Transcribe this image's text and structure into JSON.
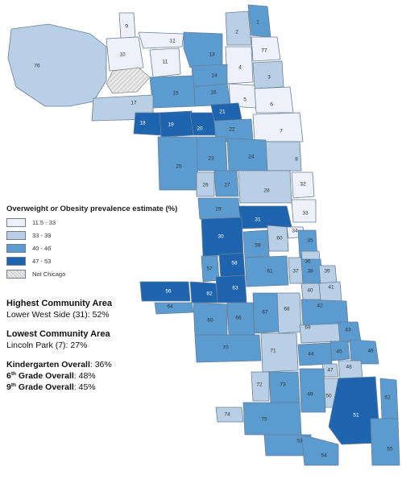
{
  "legend": {
    "title": "Overweight or Obesity prevalence estimate (%)",
    "items": [
      {
        "label": "11.5 - 33",
        "color": "#eef1fa"
      },
      {
        "label": "33 - 39",
        "color": "#b8cfe6"
      },
      {
        "label": "40 - 46",
        "color": "#5b9bcf"
      },
      {
        "label": "47 - 53",
        "color": "#1f64ae"
      },
      {
        "label": "Not Chicago",
        "color": "hatch"
      }
    ]
  },
  "stats": {
    "highest_heading": "Highest Community Area",
    "highest_value": "Lower West Side (31): 52%",
    "lowest_heading": "Lowest Community Area",
    "lowest_value": "Lincoln Park (7): 27%",
    "k_label": "Kindergarten Overall",
    "k_value": ": 36%",
    "g6_num": "6",
    "g6_sup": "th",
    "g6_label": " Grade Overall",
    "g6_value": ": 48%",
    "g9_num": "9",
    "g9_sup": "th",
    "g9_label": " Grade Overall",
    "g9_value": ": 45%"
  },
  "map": {
    "areas": [
      {
        "id": "76",
        "class": 2
      },
      {
        "id": "9",
        "class": 1
      },
      {
        "id": "10",
        "class": 1
      },
      {
        "id": "12",
        "class": 1
      },
      {
        "id": "11",
        "class": 1
      },
      {
        "id": "13",
        "class": 3
      },
      {
        "id": "2",
        "class": 2
      },
      {
        "id": "1",
        "class": 3
      },
      {
        "id": "77",
        "class": 1
      },
      {
        "id": "4",
        "class": 1
      },
      {
        "id": "3",
        "class": 2
      },
      {
        "id": "14",
        "class": 3
      },
      {
        "id": "16",
        "class": 3
      },
      {
        "id": "15",
        "class": 3
      },
      {
        "id": "17",
        "class": 2
      },
      {
        "id": "5",
        "class": 1
      },
      {
        "id": "6",
        "class": 1
      },
      {
        "id": "18",
        "class": 4
      },
      {
        "id": "19",
        "class": 4
      },
      {
        "id": "20",
        "class": 4
      },
      {
        "id": "21",
        "class": 4
      },
      {
        "id": "22",
        "class": 3
      },
      {
        "id": "7",
        "class": 1
      },
      {
        "id": "8",
        "class": 2
      },
      {
        "id": "23",
        "class": 3
      },
      {
        "id": "24",
        "class": 3
      },
      {
        "id": "25",
        "class": 3
      },
      {
        "id": "26",
        "class": 2
      },
      {
        "id": "27",
        "class": 3
      },
      {
        "id": "28",
        "class": 2
      },
      {
        "id": "32",
        "class": 1
      },
      {
        "id": "29",
        "class": 3
      },
      {
        "id": "33",
        "class": 1
      },
      {
        "id": "31",
        "class": 4
      },
      {
        "id": "30",
        "class": 4
      },
      {
        "id": "34",
        "class": 1
      },
      {
        "id": "35",
        "class": 3
      },
      {
        "id": "60",
        "class": 2
      },
      {
        "id": "59",
        "class": 3
      },
      {
        "id": "36",
        "class": 2
      },
      {
        "id": "57",
        "class": 3
      },
      {
        "id": "58",
        "class": 4
      },
      {
        "id": "61",
        "class": 3
      },
      {
        "id": "37",
        "class": 2
      },
      {
        "id": "38",
        "class": 3
      },
      {
        "id": "39",
        "class": 2
      },
      {
        "id": "40",
        "class": 2
      },
      {
        "id": "41",
        "class": 2
      },
      {
        "id": "56",
        "class": 4
      },
      {
        "id": "62",
        "class": 4
      },
      {
        "id": "63",
        "class": 4
      },
      {
        "id": "42",
        "class": 3
      },
      {
        "id": "64",
        "class": 3
      },
      {
        "id": "65",
        "class": 3
      },
      {
        "id": "66",
        "class": 3
      },
      {
        "id": "67",
        "class": 3
      },
      {
        "id": "68",
        "class": 2
      },
      {
        "id": "69",
        "class": 2
      },
      {
        "id": "43",
        "class": 3
      },
      {
        "id": "70",
        "class": 3
      },
      {
        "id": "71",
        "class": 2
      },
      {
        "id": "44",
        "class": 3
      },
      {
        "id": "45",
        "class": 3
      },
      {
        "id": "46",
        "class": 3
      },
      {
        "id": "47",
        "class": 2
      },
      {
        "id": "48",
        "class": 2
      },
      {
        "id": "72",
        "class": 2
      },
      {
        "id": "73",
        "class": 3
      },
      {
        "id": "49",
        "class": 3
      },
      {
        "id": "50",
        "class": 2
      },
      {
        "id": "51",
        "class": 4
      },
      {
        "id": "52",
        "class": 3
      },
      {
        "id": "74",
        "class": 2
      },
      {
        "id": "75",
        "class": 3
      },
      {
        "id": "53",
        "class": 3
      },
      {
        "id": "54",
        "class": 3
      },
      {
        "id": "55",
        "class": 3
      }
    ]
  }
}
